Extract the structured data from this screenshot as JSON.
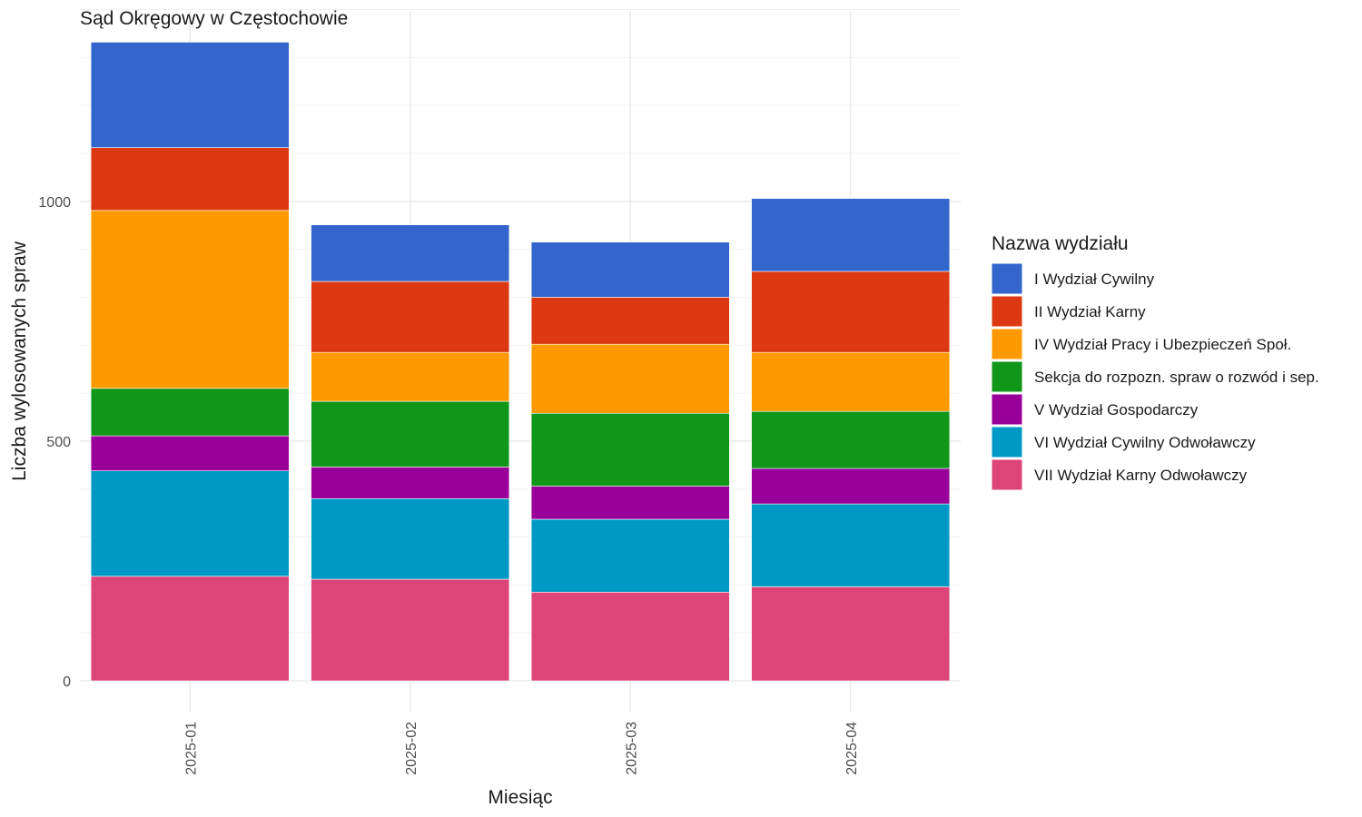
{
  "chart_data": {
    "type": "bar",
    "stacked": true,
    "title": "Sąd Okręgowy w Częstochowie",
    "xlabel": "Miesiąc",
    "ylabel": "Liczba wylosowanych spraw",
    "categories": [
      "2025-01",
      "2025-02",
      "2025-03",
      "2025-04"
    ],
    "ylim": [
      0,
      1400
    ],
    "yticks": [
      0,
      500,
      1000
    ],
    "grid": true,
    "legend": {
      "title": "Nazwa wydziału",
      "position": "right"
    },
    "series": [
      {
        "name": "I Wydział Cywilny",
        "color": "#3366CC",
        "values": [
          220,
          118,
          115,
          152
        ]
      },
      {
        "name": "II Wydział Karny",
        "color": "#DC3912",
        "values": [
          131,
          148,
          98,
          169
        ]
      },
      {
        "name": "IV Wydział Pracy i Ubezpieczeń Społ.",
        "color": "#FF9900",
        "values": [
          371,
          102,
          144,
          123
        ]
      },
      {
        "name": "Sekcja do rozpozn. spraw o rozwód i sep.",
        "color": "#109618",
        "values": [
          99,
          137,
          152,
          119
        ]
      },
      {
        "name": "V Wydział Gospodarczy",
        "color": "#990099",
        "values": [
          73,
          66,
          69,
          74
        ]
      },
      {
        "name": "VI Wydział Cywilny Odwoławczy",
        "color": "#0099C6",
        "values": [
          220,
          168,
          152,
          173
        ]
      },
      {
        "name": "VII Wydział Karny Odwoławczy",
        "color": "#DD4477",
        "values": [
          218,
          212,
          185,
          196
        ]
      }
    ]
  }
}
